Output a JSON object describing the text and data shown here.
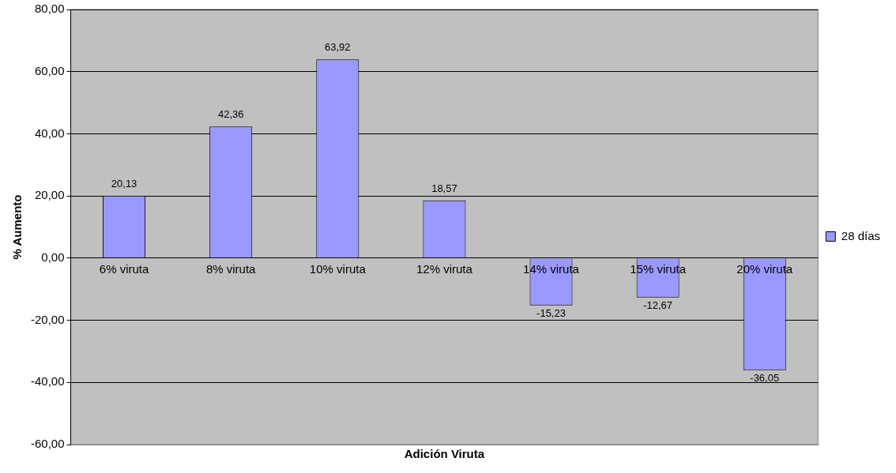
{
  "chart_data": {
    "type": "bar",
    "xlabel": "Adición Viruta",
    "ylabel": "% Aumento",
    "categories": [
      "6% viruta",
      "8% viruta",
      "10% viruta",
      "12% viruta",
      "14% viruta",
      "15% viruta",
      "20% viruta"
    ],
    "series": [
      {
        "name": "28 días",
        "color": "#9999ff",
        "values": [
          20.13,
          42.36,
          63.92,
          18.57,
          -15.23,
          -12.67,
          -36.05
        ],
        "value_labels": [
          "20,13",
          "42,36",
          "63,92",
          "18,57",
          "-15,23",
          "-12,67",
          "-36,05"
        ]
      }
    ],
    "ylim": [
      -60,
      80
    ],
    "yticks": [
      {
        "value": -60,
        "label": "-60,00"
      },
      {
        "value": -40,
        "label": "-40,00"
      },
      {
        "value": -20,
        "label": "-20,00"
      },
      {
        "value": 0,
        "label": "0,00"
      },
      {
        "value": 20,
        "label": "20,00"
      },
      {
        "value": 40,
        "label": "40,00"
      },
      {
        "value": 60,
        "label": "60,00"
      },
      {
        "value": 80,
        "label": "80,00"
      }
    ],
    "grid": "y",
    "legend": "right"
  }
}
